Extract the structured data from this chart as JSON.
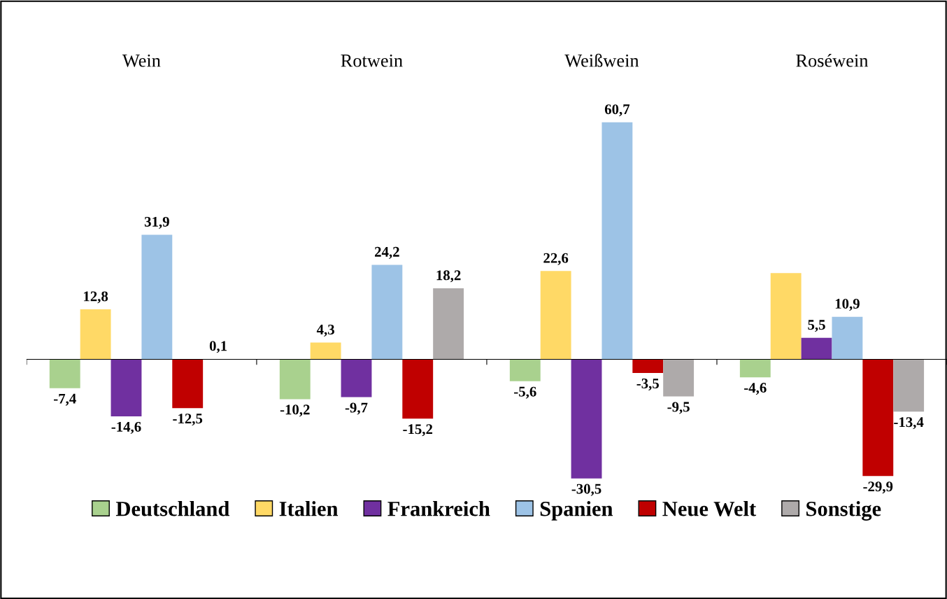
{
  "chart_data": {
    "type": "bar",
    "categories": [
      "Wein",
      "Rotwein",
      "Weißwein",
      "Roséwein"
    ],
    "legend": "bottom",
    "series": [
      {
        "name": "Deutschland",
        "color": "#a9d18e",
        "values": [
          -7.4,
          -10.2,
          -5.6,
          -4.6
        ],
        "value_labels": [
          "-7,4",
          "-10,2",
          "-5,6",
          "-4,6"
        ]
      },
      {
        "name": "Italien",
        "color": "#ffd966",
        "values": [
          12.8,
          4.3,
          22.6,
          22.1
        ],
        "value_labels": [
          "12,8",
          "4,3",
          "22,6",
          null
        ]
      },
      {
        "name": "Frankreich",
        "color": "#7030a0",
        "values": [
          -14.6,
          -9.7,
          -30.5,
          5.5
        ],
        "value_labels": [
          "-14,6",
          "-9,7",
          "-30,5",
          "5,5"
        ]
      },
      {
        "name": "Spanien",
        "color": "#9dc3e6",
        "values": [
          31.9,
          24.2,
          60.7,
          10.9
        ],
        "value_labels": [
          "31,9",
          "24,2",
          "60,7",
          "10,9"
        ]
      },
      {
        "name": "Neue Welt",
        "color": "#c00000",
        "values": [
          -12.5,
          -15.2,
          -3.5,
          -29.9
        ],
        "value_labels": [
          "-12,5",
          "-15,2",
          "-3,5",
          "-29,9"
        ]
      },
      {
        "name": "Sonstige",
        "color": "#aeaaaa",
        "values": [
          0.1,
          18.2,
          -9.5,
          -13.4
        ],
        "value_labels": [
          "0,1",
          "18,2",
          "-9,5",
          "-13,4"
        ]
      }
    ]
  }
}
